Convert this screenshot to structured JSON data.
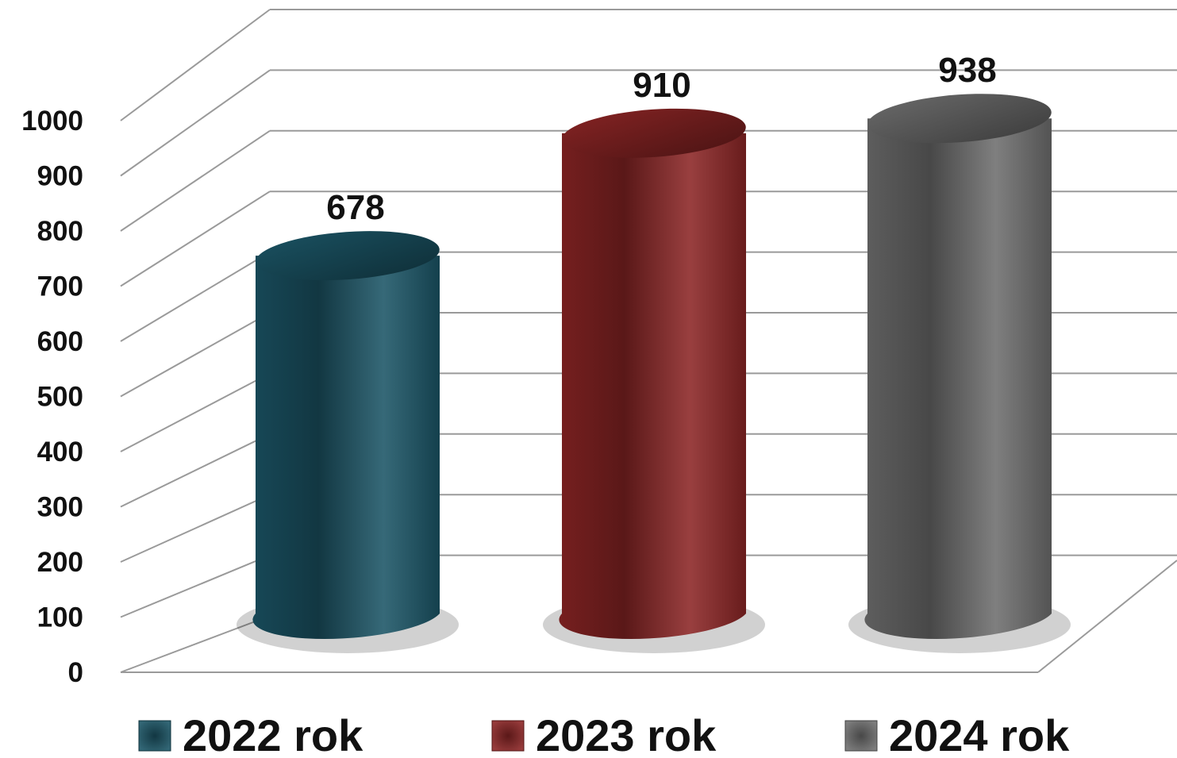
{
  "chart_data": {
    "type": "bar",
    "bar_shape": "cylinder",
    "three_d": true,
    "title": "",
    "xlabel": "",
    "ylabel": "",
    "categories": [
      "2022 rok",
      "2023 rok",
      "2024 rok"
    ],
    "values": [
      678,
      910,
      938
    ],
    "data_labels": [
      "678",
      "910",
      "938"
    ],
    "ylim": [
      0,
      1000
    ],
    "yticks": [
      "0",
      "100",
      "200",
      "300",
      "400",
      "500",
      "600",
      "700",
      "800",
      "900",
      "1000"
    ],
    "grid": true,
    "legend": {
      "placement": "bottom",
      "entries": [
        "2022 rok",
        "2023 rok",
        "2024 rok"
      ]
    },
    "colors": {
      "2022 rok": "#1b5566",
      "2023 rok": "#8b2525",
      "2024 rok": "#6e6e6e",
      "grid": "#9a9a9a"
    }
  }
}
